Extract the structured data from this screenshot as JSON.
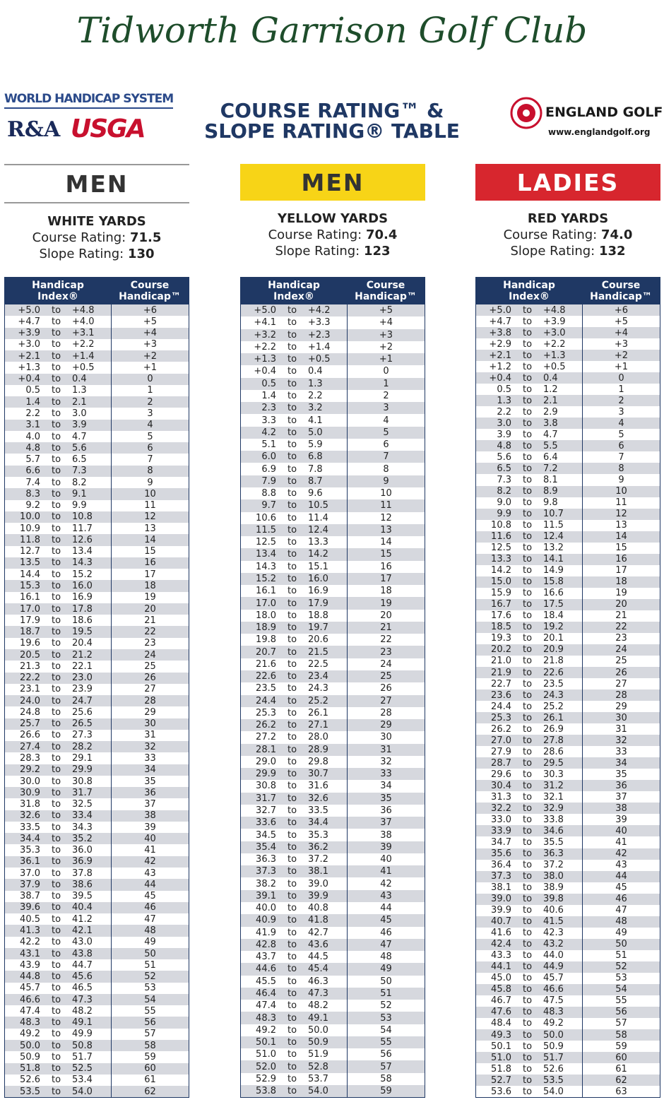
{
  "header": {
    "club": "Tidworth Garrison Golf Club",
    "whs": "WORLD HANDICAP SYSTEM",
    "ra": "R&A",
    "usga": "USGA",
    "title_line1": "COURSE RATING™ &",
    "title_line2": "SLOPE RATING® TABLE",
    "england_golf": "ENGLAND GOLF",
    "website": "www.englandgolf.org"
  },
  "tables": [
    {
      "label": "MEN",
      "tee": "WHITE YARDS",
      "course_rating_label": "Course Rating:",
      "course_rating": "71.5",
      "slope_rating_label": "Slope Rating:",
      "slope_rating": "130",
      "col1_line1": "Handicap",
      "col1_line2": "Index®",
      "col2_line1": "Course",
      "col2_line2": "Handicap™",
      "to": "to",
      "rows": [
        [
          "+5.0",
          "+4.8",
          "+6"
        ],
        [
          "+4.7",
          "+4.0",
          "+5"
        ],
        [
          "+3.9",
          "+3.1",
          "+4"
        ],
        [
          "+3.0",
          "+2.2",
          "+3"
        ],
        [
          "+2.1",
          "+1.4",
          "+2"
        ],
        [
          "+1.3",
          "+0.5",
          "+1"
        ],
        [
          "+0.4",
          "0.4",
          "0"
        ],
        [
          "0.5",
          "1.3",
          "1"
        ],
        [
          "1.4",
          "2.1",
          "2"
        ],
        [
          "2.2",
          "3.0",
          "3"
        ],
        [
          "3.1",
          "3.9",
          "4"
        ],
        [
          "4.0",
          "4.7",
          "5"
        ],
        [
          "4.8",
          "5.6",
          "6"
        ],
        [
          "5.7",
          "6.5",
          "7"
        ],
        [
          "6.6",
          "7.3",
          "8"
        ],
        [
          "7.4",
          "8.2",
          "9"
        ],
        [
          "8.3",
          "9.1",
          "10"
        ],
        [
          "9.2",
          "9.9",
          "11"
        ],
        [
          "10.0",
          "10.8",
          "12"
        ],
        [
          "10.9",
          "11.7",
          "13"
        ],
        [
          "11.8",
          "12.6",
          "14"
        ],
        [
          "12.7",
          "13.4",
          "15"
        ],
        [
          "13.5",
          "14.3",
          "16"
        ],
        [
          "14.4",
          "15.2",
          "17"
        ],
        [
          "15.3",
          "16.0",
          "18"
        ],
        [
          "16.1",
          "16.9",
          "19"
        ],
        [
          "17.0",
          "17.8",
          "20"
        ],
        [
          "17.9",
          "18.6",
          "21"
        ],
        [
          "18.7",
          "19.5",
          "22"
        ],
        [
          "19.6",
          "20.4",
          "23"
        ],
        [
          "20.5",
          "21.2",
          "24"
        ],
        [
          "21.3",
          "22.1",
          "25"
        ],
        [
          "22.2",
          "23.0",
          "26"
        ],
        [
          "23.1",
          "23.9",
          "27"
        ],
        [
          "24.0",
          "24.7",
          "28"
        ],
        [
          "24.8",
          "25.6",
          "29"
        ],
        [
          "25.7",
          "26.5",
          "30"
        ],
        [
          "26.6",
          "27.3",
          "31"
        ],
        [
          "27.4",
          "28.2",
          "32"
        ],
        [
          "28.3",
          "29.1",
          "33"
        ],
        [
          "29.2",
          "29.9",
          "34"
        ],
        [
          "30.0",
          "30.8",
          "35"
        ],
        [
          "30.9",
          "31.7",
          "36"
        ],
        [
          "31.8",
          "32.5",
          "37"
        ],
        [
          "32.6",
          "33.4",
          "38"
        ],
        [
          "33.5",
          "34.3",
          "39"
        ],
        [
          "34.4",
          "35.2",
          "40"
        ],
        [
          "35.3",
          "36.0",
          "41"
        ],
        [
          "36.1",
          "36.9",
          "42"
        ],
        [
          "37.0",
          "37.8",
          "43"
        ],
        [
          "37.9",
          "38.6",
          "44"
        ],
        [
          "38.7",
          "39.5",
          "45"
        ],
        [
          "39.6",
          "40.4",
          "46"
        ],
        [
          "40.5",
          "41.2",
          "47"
        ],
        [
          "41.3",
          "42.1",
          "48"
        ],
        [
          "42.2",
          "43.0",
          "49"
        ],
        [
          "43.1",
          "43.8",
          "50"
        ],
        [
          "43.9",
          "44.7",
          "51"
        ],
        [
          "44.8",
          "45.6",
          "52"
        ],
        [
          "45.7",
          "46.5",
          "53"
        ],
        [
          "46.6",
          "47.3",
          "54"
        ],
        [
          "47.4",
          "48.2",
          "55"
        ],
        [
          "48.3",
          "49.1",
          "56"
        ],
        [
          "49.2",
          "49.9",
          "57"
        ],
        [
          "50.0",
          "50.8",
          "58"
        ],
        [
          "50.9",
          "51.7",
          "59"
        ],
        [
          "51.8",
          "52.5",
          "60"
        ],
        [
          "52.6",
          "53.4",
          "61"
        ],
        [
          "53.5",
          "54.0",
          "62"
        ]
      ]
    },
    {
      "label": "MEN",
      "tee": "YELLOW YARDS",
      "course_rating_label": "Course Rating:",
      "course_rating": "70.4",
      "slope_rating_label": "Slope Rating:",
      "slope_rating": "123",
      "col1_line1": "Handicap",
      "col1_line2": "Index®",
      "col2_line1": "Course",
      "col2_line2": "Handicap™",
      "to": "to",
      "rows": [
        [
          "+5.0",
          "+4.2",
          "+5"
        ],
        [
          "+4.1",
          "+3.3",
          "+4"
        ],
        [
          "+3.2",
          "+2.3",
          "+3"
        ],
        [
          "+2.2",
          "+1.4",
          "+2"
        ],
        [
          "+1.3",
          "+0.5",
          "+1"
        ],
        [
          "+0.4",
          "0.4",
          "0"
        ],
        [
          "0.5",
          "1.3",
          "1"
        ],
        [
          "1.4",
          "2.2",
          "2"
        ],
        [
          "2.3",
          "3.2",
          "3"
        ],
        [
          "3.3",
          "4.1",
          "4"
        ],
        [
          "4.2",
          "5.0",
          "5"
        ],
        [
          "5.1",
          "5.9",
          "6"
        ],
        [
          "6.0",
          "6.8",
          "7"
        ],
        [
          "6.9",
          "7.8",
          "8"
        ],
        [
          "7.9",
          "8.7",
          "9"
        ],
        [
          "8.8",
          "9.6",
          "10"
        ],
        [
          "9.7",
          "10.5",
          "11"
        ],
        [
          "10.6",
          "11.4",
          "12"
        ],
        [
          "11.5",
          "12.4",
          "13"
        ],
        [
          "12.5",
          "13.3",
          "14"
        ],
        [
          "13.4",
          "14.2",
          "15"
        ],
        [
          "14.3",
          "15.1",
          "16"
        ],
        [
          "15.2",
          "16.0",
          "17"
        ],
        [
          "16.1",
          "16.9",
          "18"
        ],
        [
          "17.0",
          "17.9",
          "19"
        ],
        [
          "18.0",
          "18.8",
          "20"
        ],
        [
          "18.9",
          "19.7",
          "21"
        ],
        [
          "19.8",
          "20.6",
          "22"
        ],
        [
          "20.7",
          "21.5",
          "23"
        ],
        [
          "21.6",
          "22.5",
          "24"
        ],
        [
          "22.6",
          "23.4",
          "25"
        ],
        [
          "23.5",
          "24.3",
          "26"
        ],
        [
          "24.4",
          "25.2",
          "27"
        ],
        [
          "25.3",
          "26.1",
          "28"
        ],
        [
          "26.2",
          "27.1",
          "29"
        ],
        [
          "27.2",
          "28.0",
          "30"
        ],
        [
          "28.1",
          "28.9",
          "31"
        ],
        [
          "29.0",
          "29.8",
          "32"
        ],
        [
          "29.9",
          "30.7",
          "33"
        ],
        [
          "30.8",
          "31.6",
          "34"
        ],
        [
          "31.7",
          "32.6",
          "35"
        ],
        [
          "32.7",
          "33.5",
          "36"
        ],
        [
          "33.6",
          "34.4",
          "37"
        ],
        [
          "34.5",
          "35.3",
          "38"
        ],
        [
          "35.4",
          "36.2",
          "39"
        ],
        [
          "36.3",
          "37.2",
          "40"
        ],
        [
          "37.3",
          "38.1",
          "41"
        ],
        [
          "38.2",
          "39.0",
          "42"
        ],
        [
          "39.1",
          "39.9",
          "43"
        ],
        [
          "40.0",
          "40.8",
          "44"
        ],
        [
          "40.9",
          "41.8",
          "45"
        ],
        [
          "41.9",
          "42.7",
          "46"
        ],
        [
          "42.8",
          "43.6",
          "47"
        ],
        [
          "43.7",
          "44.5",
          "48"
        ],
        [
          "44.6",
          "45.4",
          "49"
        ],
        [
          "45.5",
          "46.3",
          "50"
        ],
        [
          "46.4",
          "47.3",
          "51"
        ],
        [
          "47.4",
          "48.2",
          "52"
        ],
        [
          "48.3",
          "49.1",
          "53"
        ],
        [
          "49.2",
          "50.0",
          "54"
        ],
        [
          "50.1",
          "50.9",
          "55"
        ],
        [
          "51.0",
          "51.9",
          "56"
        ],
        [
          "52.0",
          "52.8",
          "57"
        ],
        [
          "52.9",
          "53.7",
          "58"
        ],
        [
          "53.8",
          "54.0",
          "59"
        ]
      ]
    },
    {
      "label": "LADIES",
      "tee": "RED YARDS",
      "course_rating_label": "Course Rating:",
      "course_rating": "74.0",
      "slope_rating_label": "Slope Rating:",
      "slope_rating": "132",
      "col1_line1": "Handicap",
      "col1_line2": "Index®",
      "col2_line1": "Course",
      "col2_line2": "Handicap™",
      "to": "to",
      "rows": [
        [
          "+5.0",
          "+4.8",
          "+6"
        ],
        [
          "+4.7",
          "+3.9",
          "+5"
        ],
        [
          "+3.8",
          "+3.0",
          "+4"
        ],
        [
          "+2.9",
          "+2.2",
          "+3"
        ],
        [
          "+2.1",
          "+1.3",
          "+2"
        ],
        [
          "+1.2",
          "+0.5",
          "+1"
        ],
        [
          "+0.4",
          "0.4",
          "0"
        ],
        [
          "0.5",
          "1.2",
          "1"
        ],
        [
          "1.3",
          "2.1",
          "2"
        ],
        [
          "2.2",
          "2.9",
          "3"
        ],
        [
          "3.0",
          "3.8",
          "4"
        ],
        [
          "3.9",
          "4.7",
          "5"
        ],
        [
          "4.8",
          "5.5",
          "6"
        ],
        [
          "5.6",
          "6.4",
          "7"
        ],
        [
          "6.5",
          "7.2",
          "8"
        ],
        [
          "7.3",
          "8.1",
          "9"
        ],
        [
          "8.2",
          "8.9",
          "10"
        ],
        [
          "9.0",
          "9.8",
          "11"
        ],
        [
          "9.9",
          "10.7",
          "12"
        ],
        [
          "10.8",
          "11.5",
          "13"
        ],
        [
          "11.6",
          "12.4",
          "14"
        ],
        [
          "12.5",
          "13.2",
          "15"
        ],
        [
          "13.3",
          "14.1",
          "16"
        ],
        [
          "14.2",
          "14.9",
          "17"
        ],
        [
          "15.0",
          "15.8",
          "18"
        ],
        [
          "15.9",
          "16.6",
          "19"
        ],
        [
          "16.7",
          "17.5",
          "20"
        ],
        [
          "17.6",
          "18.4",
          "21"
        ],
        [
          "18.5",
          "19.2",
          "22"
        ],
        [
          "19.3",
          "20.1",
          "23"
        ],
        [
          "20.2",
          "20.9",
          "24"
        ],
        [
          "21.0",
          "21.8",
          "25"
        ],
        [
          "21.9",
          "22.6",
          "26"
        ],
        [
          "22.7",
          "23.5",
          "27"
        ],
        [
          "23.6",
          "24.3",
          "28"
        ],
        [
          "24.4",
          "25.2",
          "29"
        ],
        [
          "25.3",
          "26.1",
          "30"
        ],
        [
          "26.2",
          "26.9",
          "31"
        ],
        [
          "27.0",
          "27.8",
          "32"
        ],
        [
          "27.9",
          "28.6",
          "33"
        ],
        [
          "28.7",
          "29.5",
          "34"
        ],
        [
          "29.6",
          "30.3",
          "35"
        ],
        [
          "30.4",
          "31.2",
          "36"
        ],
        [
          "31.3",
          "32.1",
          "37"
        ],
        [
          "32.2",
          "32.9",
          "38"
        ],
        [
          "33.0",
          "33.8",
          "39"
        ],
        [
          "33.9",
          "34.6",
          "40"
        ],
        [
          "34.7",
          "35.5",
          "41"
        ],
        [
          "35.6",
          "36.3",
          "42"
        ],
        [
          "36.4",
          "37.2",
          "43"
        ],
        [
          "37.3",
          "38.0",
          "44"
        ],
        [
          "38.1",
          "38.9",
          "45"
        ],
        [
          "39.0",
          "39.8",
          "46"
        ],
        [
          "39.9",
          "40.6",
          "47"
        ],
        [
          "40.7",
          "41.5",
          "48"
        ],
        [
          "41.6",
          "42.3",
          "49"
        ],
        [
          "42.4",
          "43.2",
          "50"
        ],
        [
          "43.3",
          "44.0",
          "51"
        ],
        [
          "44.1",
          "44.9",
          "52"
        ],
        [
          "45.0",
          "45.7",
          "53"
        ],
        [
          "45.8",
          "46.6",
          "54"
        ],
        [
          "46.7",
          "47.5",
          "55"
        ],
        [
          "47.6",
          "48.3",
          "56"
        ],
        [
          "48.4",
          "49.2",
          "57"
        ],
        [
          "49.3",
          "50.0",
          "58"
        ],
        [
          "50.1",
          "50.9",
          "59"
        ],
        [
          "51.0",
          "51.7",
          "60"
        ],
        [
          "51.8",
          "52.6",
          "61"
        ],
        [
          "52.7",
          "53.5",
          "62"
        ],
        [
          "53.6",
          "54.0",
          "63"
        ]
      ]
    }
  ]
}
